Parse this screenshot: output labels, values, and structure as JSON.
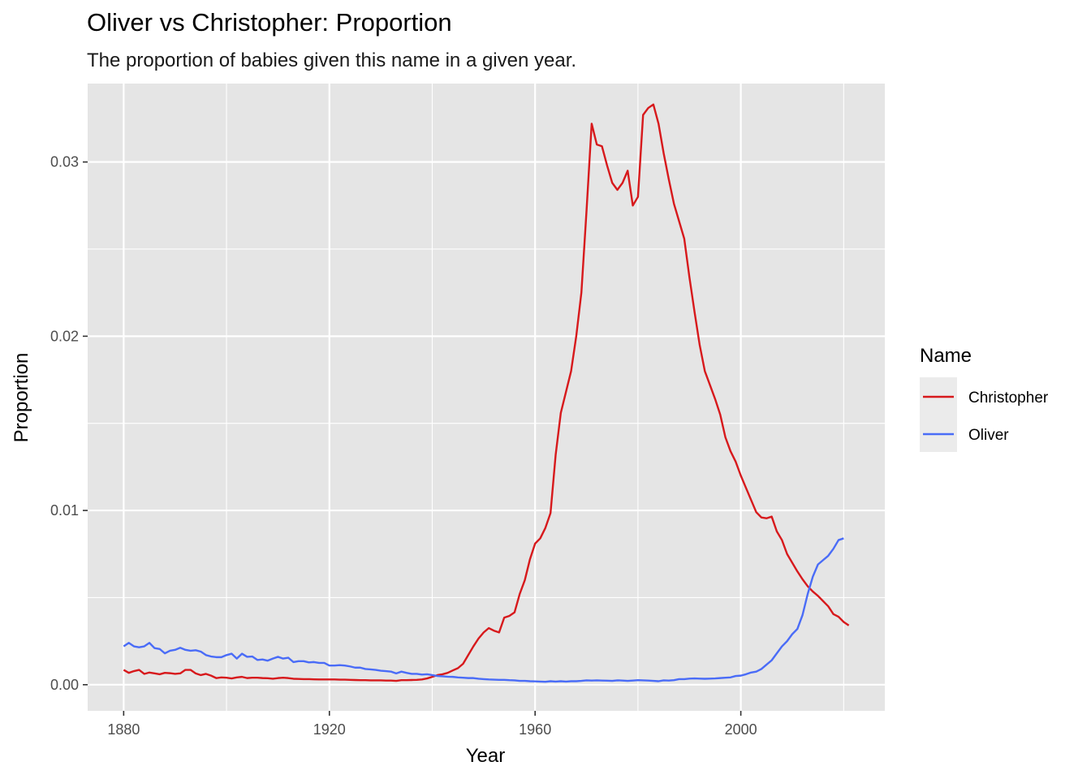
{
  "chart_data": {
    "type": "line",
    "title": "Oliver vs Christopher: Proportion",
    "subtitle": "The proportion of babies given this name in a given year.",
    "xlabel": "Year",
    "ylabel": "Proportion",
    "xlim": [
      1873,
      2028
    ],
    "ylim": [
      -0.0015,
      0.0345
    ],
    "x_ticks": [
      1880,
      1920,
      1960,
      2000
    ],
    "x_tick_labels": [
      "1880",
      "1920",
      "1960",
      "2000"
    ],
    "y_ticks": [
      0.0,
      0.01,
      0.02,
      0.03
    ],
    "y_tick_labels": [
      "0.00",
      "0.01",
      "0.02",
      "0.03"
    ],
    "grid": true,
    "legend": {
      "title": "Name",
      "position": "right"
    },
    "colors": {
      "Christopher": "#d7191c",
      "Oliver": "#4a6cf7",
      "panel": "#e5e5e5",
      "grid": "#ffffff"
    },
    "series": [
      {
        "name": "Christopher",
        "color": "#d7191c",
        "points": [
          [
            1880,
            0.00085
          ],
          [
            1881,
            0.00068
          ],
          [
            1882,
            0.00078
          ],
          [
            1883,
            0.00085
          ],
          [
            1884,
            0.00062
          ],
          [
            1885,
            0.0007
          ],
          [
            1886,
            0.00065
          ],
          [
            1887,
            0.0006
          ],
          [
            1888,
            0.00068
          ],
          [
            1889,
            0.00066
          ],
          [
            1890,
            0.00062
          ],
          [
            1891,
            0.00065
          ],
          [
            1892,
            0.00085
          ],
          [
            1893,
            0.00085
          ],
          [
            1894,
            0.00065
          ],
          [
            1895,
            0.00055
          ],
          [
            1896,
            0.00062
          ],
          [
            1897,
            0.00052
          ],
          [
            1898,
            0.00038
          ],
          [
            1899,
            0.00042
          ],
          [
            1900,
            0.0004
          ],
          [
            1901,
            0.00036
          ],
          [
            1902,
            0.00042
          ],
          [
            1903,
            0.00045
          ],
          [
            1904,
            0.00038
          ],
          [
            1905,
            0.0004
          ],
          [
            1906,
            0.0004
          ],
          [
            1907,
            0.00038
          ],
          [
            1908,
            0.00037
          ],
          [
            1909,
            0.00034
          ],
          [
            1910,
            0.00038
          ],
          [
            1911,
            0.0004
          ],
          [
            1912,
            0.00038
          ],
          [
            1913,
            0.00034
          ],
          [
            1914,
            0.00033
          ],
          [
            1915,
            0.00032
          ],
          [
            1916,
            0.00032
          ],
          [
            1917,
            0.00031
          ],
          [
            1918,
            0.0003
          ],
          [
            1919,
            0.0003
          ],
          [
            1920,
            0.0003
          ],
          [
            1921,
            0.0003
          ],
          [
            1922,
            0.00029
          ],
          [
            1923,
            0.00029
          ],
          [
            1924,
            0.00028
          ],
          [
            1925,
            0.00027
          ],
          [
            1926,
            0.00026
          ],
          [
            1927,
            0.00026
          ],
          [
            1928,
            0.00025
          ],
          [
            1929,
            0.00025
          ],
          [
            1930,
            0.00025
          ],
          [
            1931,
            0.00024
          ],
          [
            1932,
            0.00024
          ],
          [
            1933,
            0.00022
          ],
          [
            1934,
            0.00026
          ],
          [
            1935,
            0.00026
          ],
          [
            1936,
            0.00027
          ],
          [
            1937,
            0.00028
          ],
          [
            1938,
            0.0003
          ],
          [
            1939,
            0.00036
          ],
          [
            1940,
            0.00045
          ],
          [
            1941,
            0.00055
          ],
          [
            1942,
            0.0006
          ],
          [
            1943,
            0.00068
          ],
          [
            1944,
            0.00082
          ],
          [
            1945,
            0.00095
          ],
          [
            1946,
            0.0012
          ],
          [
            1947,
            0.0017
          ],
          [
            1948,
            0.0022
          ],
          [
            1949,
            0.00265
          ],
          [
            1950,
            0.003
          ],
          [
            1951,
            0.00325
          ],
          [
            1952,
            0.0031
          ],
          [
            1953,
            0.003
          ],
          [
            1954,
            0.00385
          ],
          [
            1955,
            0.00395
          ],
          [
            1956,
            0.00415
          ],
          [
            1957,
            0.0052
          ],
          [
            1958,
            0.006
          ],
          [
            1959,
            0.0072
          ],
          [
            1960,
            0.0081
          ],
          [
            1961,
            0.0084
          ],
          [
            1962,
            0.009
          ],
          [
            1963,
            0.00985
          ],
          [
            1964,
            0.0132
          ],
          [
            1965,
            0.0156
          ],
          [
            1966,
            0.0168
          ],
          [
            1967,
            0.018
          ],
          [
            1968,
            0.02
          ],
          [
            1969,
            0.0225
          ],
          [
            1970,
            0.0272
          ],
          [
            1971,
            0.0322
          ],
          [
            1972,
            0.031
          ],
          [
            1973,
            0.0309
          ],
          [
            1974,
            0.0298
          ],
          [
            1975,
            0.0288
          ],
          [
            1976,
            0.0284
          ],
          [
            1977,
            0.0288
          ],
          [
            1978,
            0.0295
          ],
          [
            1979,
            0.0275
          ],
          [
            1980,
            0.028
          ],
          [
            1981,
            0.0327
          ],
          [
            1982,
            0.0331
          ],
          [
            1983,
            0.0333
          ],
          [
            1984,
            0.0322
          ],
          [
            1985,
            0.0305
          ],
          [
            1986,
            0.029
          ],
          [
            1987,
            0.0276
          ],
          [
            1988,
            0.0266
          ],
          [
            1989,
            0.0256
          ],
          [
            1990,
            0.0234
          ],
          [
            1991,
            0.0214
          ],
          [
            1992,
            0.0195
          ],
          [
            1993,
            0.018
          ],
          [
            1994,
            0.0172
          ],
          [
            1995,
            0.0164
          ],
          [
            1996,
            0.0155
          ],
          [
            1997,
            0.0142
          ],
          [
            1998,
            0.0134
          ],
          [
            1999,
            0.0128
          ],
          [
            2000,
            0.012
          ],
          [
            2001,
            0.0113
          ],
          [
            2002,
            0.0106
          ],
          [
            2003,
            0.0099
          ],
          [
            2004,
            0.0096
          ],
          [
            2005,
            0.00955
          ],
          [
            2006,
            0.00965
          ],
          [
            2007,
            0.0088
          ],
          [
            2008,
            0.0083
          ],
          [
            2009,
            0.0075
          ],
          [
            2010,
            0.007
          ],
          [
            2011,
            0.0065
          ],
          [
            2012,
            0.00605
          ],
          [
            2013,
            0.00565
          ],
          [
            2014,
            0.00535
          ],
          [
            2015,
            0.0051
          ],
          [
            2016,
            0.0048
          ],
          [
            2017,
            0.0045
          ],
          [
            2018,
            0.00405
          ],
          [
            2019,
            0.0039
          ],
          [
            2020,
            0.0036
          ],
          [
            2021,
            0.0034
          ]
        ]
      },
      {
        "name": "Oliver",
        "color": "#4a6cf7",
        "points": [
          [
            1880,
            0.0022
          ],
          [
            1881,
            0.0024
          ],
          [
            1882,
            0.0022
          ],
          [
            1883,
            0.00215
          ],
          [
            1884,
            0.0022
          ],
          [
            1885,
            0.0024
          ],
          [
            1886,
            0.0021
          ],
          [
            1887,
            0.00205
          ],
          [
            1888,
            0.0018
          ],
          [
            1889,
            0.00195
          ],
          [
            1890,
            0.002
          ],
          [
            1891,
            0.00212
          ],
          [
            1892,
            0.002
          ],
          [
            1893,
            0.00195
          ],
          [
            1894,
            0.00198
          ],
          [
            1895,
            0.0019
          ],
          [
            1896,
            0.0017
          ],
          [
            1897,
            0.00162
          ],
          [
            1898,
            0.00158
          ],
          [
            1899,
            0.00158
          ],
          [
            1900,
            0.0017
          ],
          [
            1901,
            0.00178
          ],
          [
            1902,
            0.0015
          ],
          [
            1903,
            0.00178
          ],
          [
            1904,
            0.0016
          ],
          [
            1905,
            0.00162
          ],
          [
            1906,
            0.00142
          ],
          [
            1907,
            0.00145
          ],
          [
            1908,
            0.00138
          ],
          [
            1909,
            0.0015
          ],
          [
            1910,
            0.0016
          ],
          [
            1911,
            0.0015
          ],
          [
            1912,
            0.00155
          ],
          [
            1913,
            0.0013
          ],
          [
            1914,
            0.00135
          ],
          [
            1915,
            0.00135
          ],
          [
            1916,
            0.00128
          ],
          [
            1917,
            0.0013
          ],
          [
            1918,
            0.00125
          ],
          [
            1919,
            0.00125
          ],
          [
            1920,
            0.0011
          ],
          [
            1921,
            0.0011
          ],
          [
            1922,
            0.00112
          ],
          [
            1923,
            0.0011
          ],
          [
            1924,
            0.00105
          ],
          [
            1925,
            0.00098
          ],
          [
            1926,
            0.00098
          ],
          [
            1927,
            0.0009
          ],
          [
            1928,
            0.00088
          ],
          [
            1929,
            0.00085
          ],
          [
            1930,
            0.0008
          ],
          [
            1931,
            0.00078
          ],
          [
            1932,
            0.00075
          ],
          [
            1933,
            0.00065
          ],
          [
            1934,
            0.00075
          ],
          [
            1935,
            0.00068
          ],
          [
            1936,
            0.00062
          ],
          [
            1937,
            0.00062
          ],
          [
            1938,
            0.00058
          ],
          [
            1939,
            0.0006
          ],
          [
            1940,
            0.00055
          ],
          [
            1941,
            0.0005
          ],
          [
            1942,
            0.00048
          ],
          [
            1943,
            0.00046
          ],
          [
            1944,
            0.00045
          ],
          [
            1945,
            0.00042
          ],
          [
            1946,
            0.0004
          ],
          [
            1947,
            0.00038
          ],
          [
            1948,
            0.00038
          ],
          [
            1949,
            0.00034
          ],
          [
            1950,
            0.00032
          ],
          [
            1951,
            0.0003
          ],
          [
            1952,
            0.00029
          ],
          [
            1953,
            0.00028
          ],
          [
            1954,
            0.00028
          ],
          [
            1955,
            0.00026
          ],
          [
            1956,
            0.00025
          ],
          [
            1957,
            0.00022
          ],
          [
            1958,
            0.00022
          ],
          [
            1959,
            0.0002
          ],
          [
            1960,
            0.00019
          ],
          [
            1961,
            0.00018
          ],
          [
            1962,
            0.00017
          ],
          [
            1963,
            0.0002
          ],
          [
            1964,
            0.00018
          ],
          [
            1965,
            0.0002
          ],
          [
            1966,
            0.00018
          ],
          [
            1967,
            0.0002
          ],
          [
            1968,
            0.0002
          ],
          [
            1969,
            0.00022
          ],
          [
            1970,
            0.00025
          ],
          [
            1971,
            0.00024
          ],
          [
            1972,
            0.00025
          ],
          [
            1973,
            0.00024
          ],
          [
            1974,
            0.00023
          ],
          [
            1975,
            0.00022
          ],
          [
            1976,
            0.00025
          ],
          [
            1977,
            0.00024
          ],
          [
            1978,
            0.00022
          ],
          [
            1979,
            0.00024
          ],
          [
            1980,
            0.00026
          ],
          [
            1981,
            0.00025
          ],
          [
            1982,
            0.00024
          ],
          [
            1983,
            0.00022
          ],
          [
            1984,
            0.0002
          ],
          [
            1985,
            0.00025
          ],
          [
            1986,
            0.00024
          ],
          [
            1987,
            0.00026
          ],
          [
            1988,
            0.00032
          ],
          [
            1989,
            0.00032
          ],
          [
            1990,
            0.00035
          ],
          [
            1991,
            0.00036
          ],
          [
            1992,
            0.00035
          ],
          [
            1993,
            0.00034
          ],
          [
            1994,
            0.00035
          ],
          [
            1995,
            0.00036
          ],
          [
            1996,
            0.00038
          ],
          [
            1997,
            0.0004
          ],
          [
            1998,
            0.00042
          ],
          [
            1999,
            0.0005
          ],
          [
            2000,
            0.00052
          ],
          [
            2001,
            0.0006
          ],
          [
            2002,
            0.0007
          ],
          [
            2003,
            0.00075
          ],
          [
            2004,
            0.0009
          ],
          [
            2005,
            0.00115
          ],
          [
            2006,
            0.0014
          ],
          [
            2007,
            0.0018
          ],
          [
            2008,
            0.0022
          ],
          [
            2009,
            0.0025
          ],
          [
            2010,
            0.0029
          ],
          [
            2011,
            0.0032
          ],
          [
            2012,
            0.004
          ],
          [
            2013,
            0.0052
          ],
          [
            2014,
            0.0062
          ],
          [
            2015,
            0.0069
          ],
          [
            2016,
            0.00715
          ],
          [
            2017,
            0.0074
          ],
          [
            2018,
            0.0078
          ],
          [
            2019,
            0.0083
          ],
          [
            2020,
            0.0084
          ]
        ]
      }
    ]
  }
}
